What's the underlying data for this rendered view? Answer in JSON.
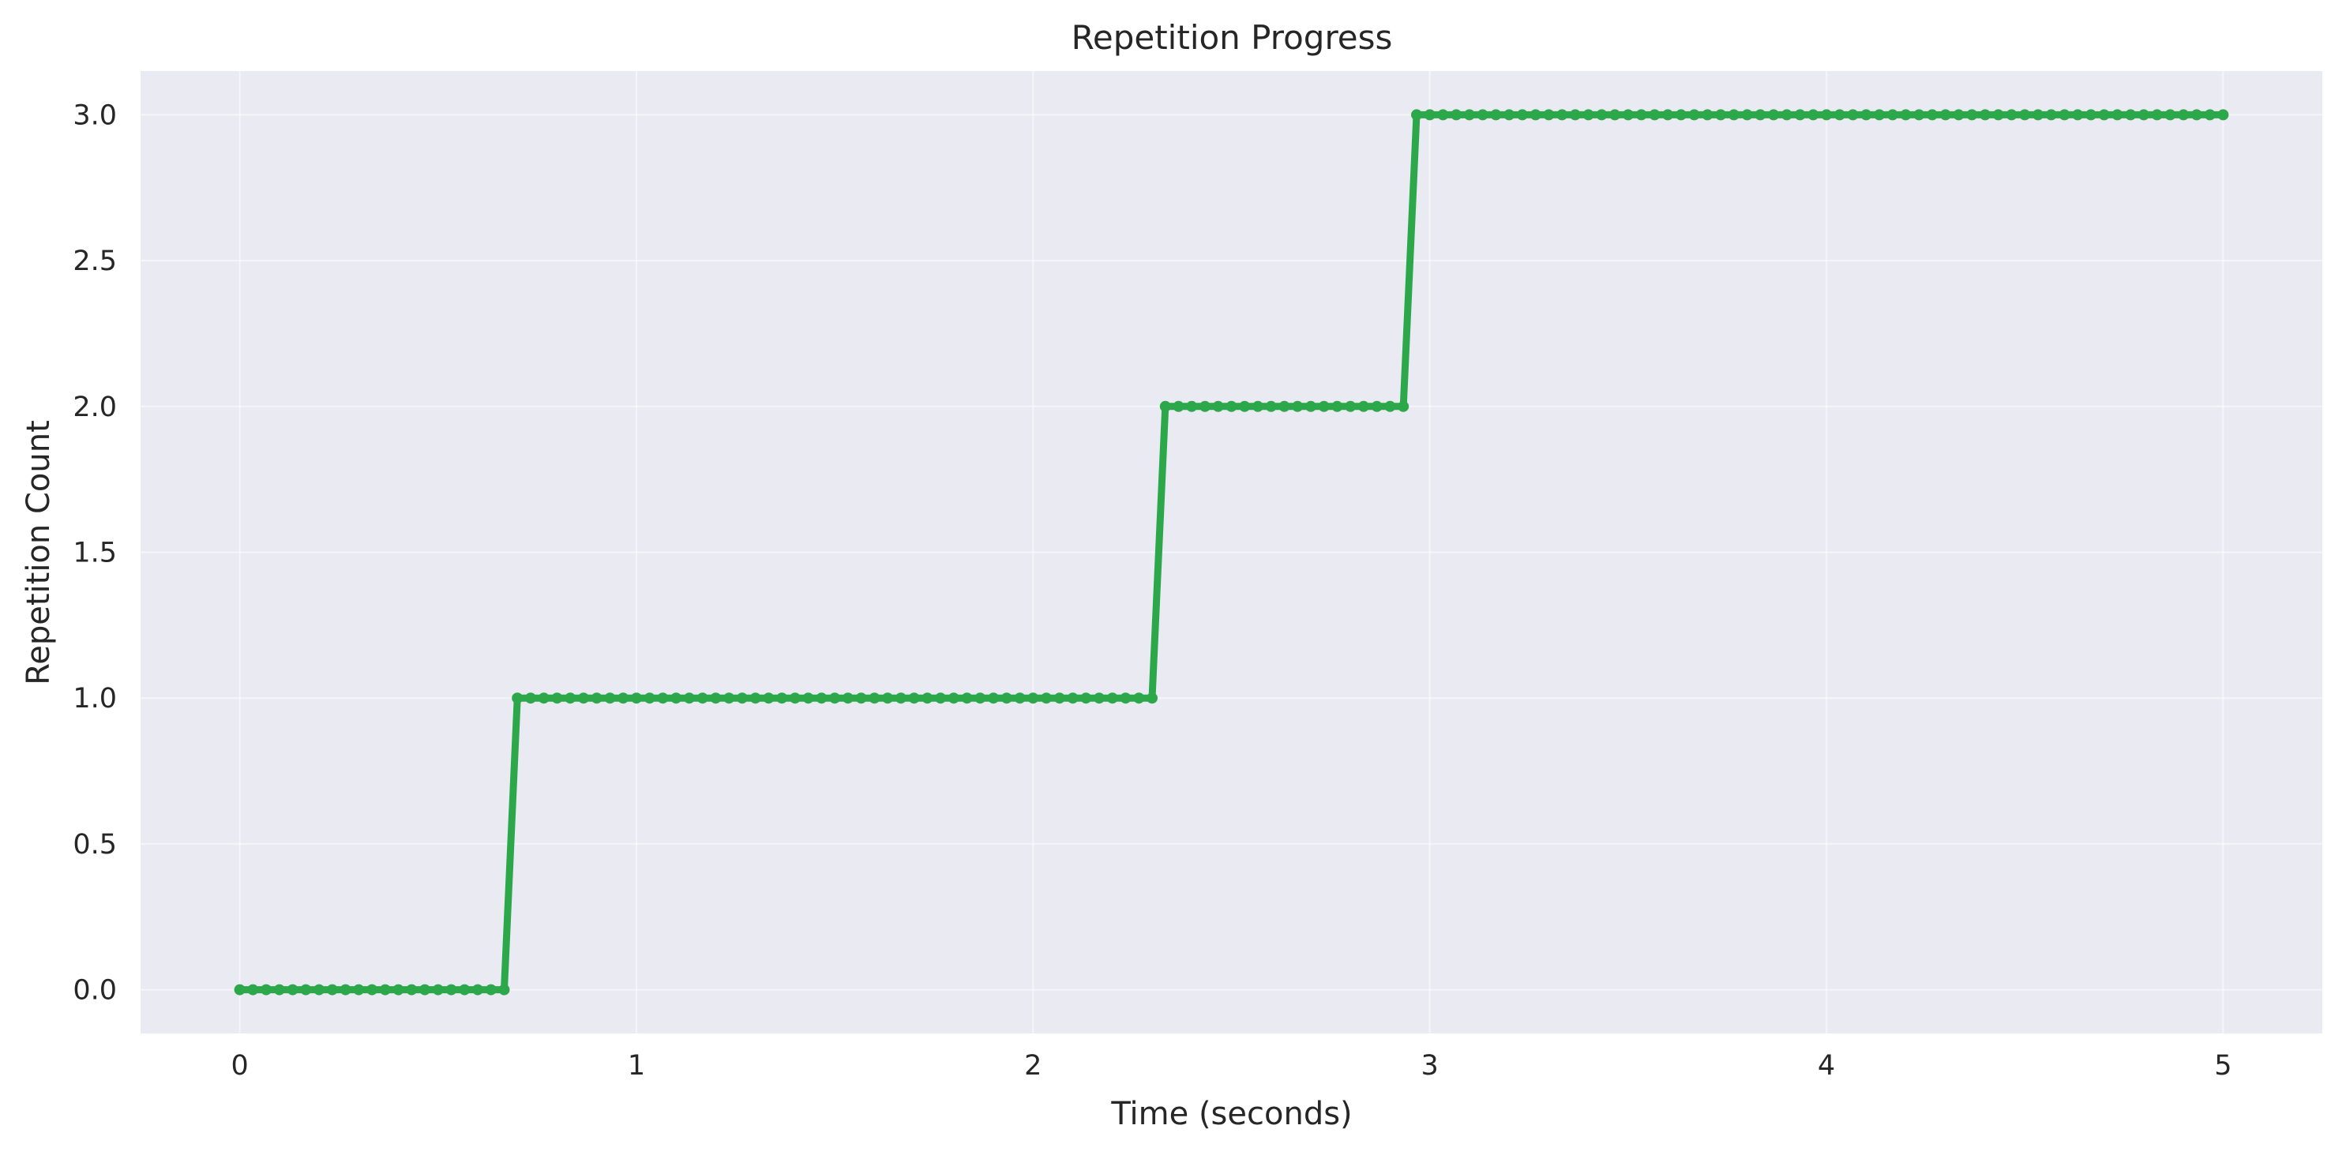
{
  "chart_data": {
    "type": "line",
    "title": "Repetition Progress",
    "xlabel": "Time (seconds)",
    "ylabel": "Repetition Count",
    "xlim": [
      -0.25,
      5.25
    ],
    "ylim": [
      -0.15,
      3.15
    ],
    "xticks": [
      0,
      1,
      2,
      3,
      4,
      5
    ],
    "xtick_labels": [
      "0",
      "1",
      "2",
      "3",
      "4",
      "5"
    ],
    "yticks": [
      0.0,
      0.5,
      1.0,
      1.5,
      2.0,
      2.5,
      3.0
    ],
    "ytick_labels": [
      "0.0",
      "0.5",
      "1.0",
      "1.5",
      "2.0",
      "2.5",
      "3.0"
    ],
    "grid": true,
    "background": "#eaeaf2",
    "series": [
      {
        "color": "#2ca84a",
        "marker": "circle",
        "sample_interval": 0.0333,
        "steps": [
          {
            "start": 0.0,
            "end": 0.6667,
            "value": 0
          },
          {
            "start": 0.7,
            "end": 2.3,
            "value": 1
          },
          {
            "start": 2.3333,
            "end": 2.9333,
            "value": 2
          },
          {
            "start": 2.9667,
            "end": 5.0,
            "value": 3
          }
        ]
      }
    ]
  }
}
